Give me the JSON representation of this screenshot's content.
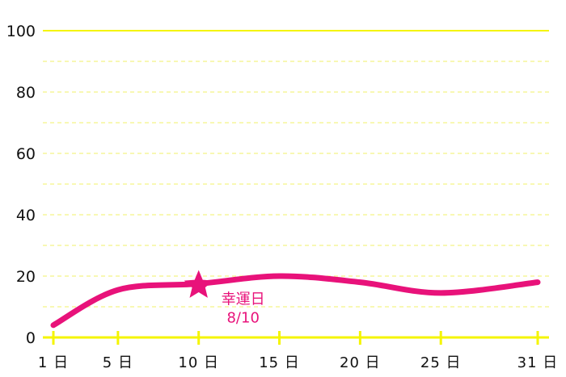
{
  "chart_data": {
    "type": "line",
    "title": "",
    "xlabel": "",
    "ylabel": "",
    "ylim": [
      0,
      100
    ],
    "xlim": [
      1,
      31
    ],
    "y_ticks": [
      0,
      20,
      40,
      60,
      80,
      100
    ],
    "x_ticks": [
      1,
      5,
      10,
      15,
      20,
      25,
      31
    ],
    "x_tick_labels": [
      "1 日",
      "5 日",
      "10 日",
      "15 日",
      "20 日",
      "25 日",
      "31 日"
    ],
    "grid": "dashed horizontal every 10, solid major gridlines every 20",
    "series": [
      {
        "color": "#e8127a",
        "x": [
          1,
          5,
          10,
          15,
          20,
          25,
          31
        ],
        "y": [
          4,
          15.5,
          17.5,
          20,
          18,
          14.5,
          18
        ]
      }
    ],
    "annotation": {
      "marker": "star-icon",
      "x": 10,
      "y": 17.5,
      "line1": "幸運日",
      "line2": "8/10"
    },
    "colors": {
      "line": "#e8127a",
      "gridline": "#f5f500",
      "gridline_dashed": "#f5f59a",
      "text": "#111111"
    }
  }
}
